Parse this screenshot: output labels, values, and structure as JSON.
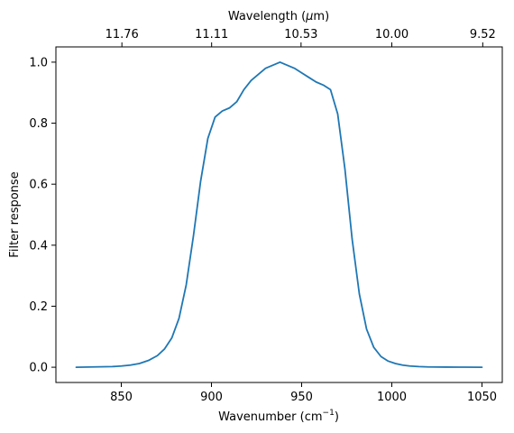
{
  "chart_data": {
    "type": "line",
    "xlabel": "Wavenumber (cm",
    "xlabel_sup": "−1",
    "xlabel_end": ")",
    "ylabel": "Filter response",
    "top_xlabel": "Wavelength (",
    "top_xlabel_mu": "μ",
    "top_xlabel_end": "m)",
    "xlim": [
      813.75,
      1061.25
    ],
    "ylim": [
      -0.05,
      1.05
    ],
    "xticks": [
      850,
      900,
      950,
      1000,
      1050
    ],
    "xtick_labels": [
      "850",
      "900",
      "950",
      "1000",
      "1050"
    ],
    "yticks": [
      0.0,
      0.2,
      0.4,
      0.6,
      0.8,
      1.0
    ],
    "ytick_labels": [
      "0.0",
      "0.2",
      "0.4",
      "0.6",
      "0.8",
      "1.0"
    ],
    "top_xticks": [
      850.34,
      900.09,
      949.67,
      1000,
      1050.42
    ],
    "top_xtick_labels": [
      "11.76",
      "11.11",
      "10.53",
      "10.00",
      "9.52"
    ],
    "grid": false,
    "series": [
      {
        "color": "#1f77b4",
        "x": [
          825,
          835,
          845,
          850,
          855,
          860,
          865,
          870,
          874,
          878,
          882,
          886,
          890,
          894,
          898,
          902,
          906,
          910,
          914,
          918,
          922,
          926,
          930,
          934,
          938,
          942,
          946,
          950,
          954,
          958,
          962,
          966,
          970,
          974,
          978,
          982,
          986,
          990,
          994,
          998,
          1002,
          1006,
          1010,
          1015,
          1020,
          1030,
          1040,
          1050
        ],
        "y": [
          0.0,
          0.001,
          0.002,
          0.004,
          0.007,
          0.012,
          0.022,
          0.038,
          0.06,
          0.096,
          0.16,
          0.27,
          0.43,
          0.61,
          0.75,
          0.82,
          0.84,
          0.85,
          0.87,
          0.91,
          0.94,
          0.96,
          0.98,
          0.99,
          1.0,
          0.99,
          0.98,
          0.965,
          0.95,
          0.935,
          0.925,
          0.91,
          0.83,
          0.65,
          0.42,
          0.24,
          0.125,
          0.065,
          0.035,
          0.02,
          0.012,
          0.007,
          0.004,
          0.002,
          0.001,
          0.0005,
          0.0002,
          0.0
        ]
      }
    ]
  }
}
